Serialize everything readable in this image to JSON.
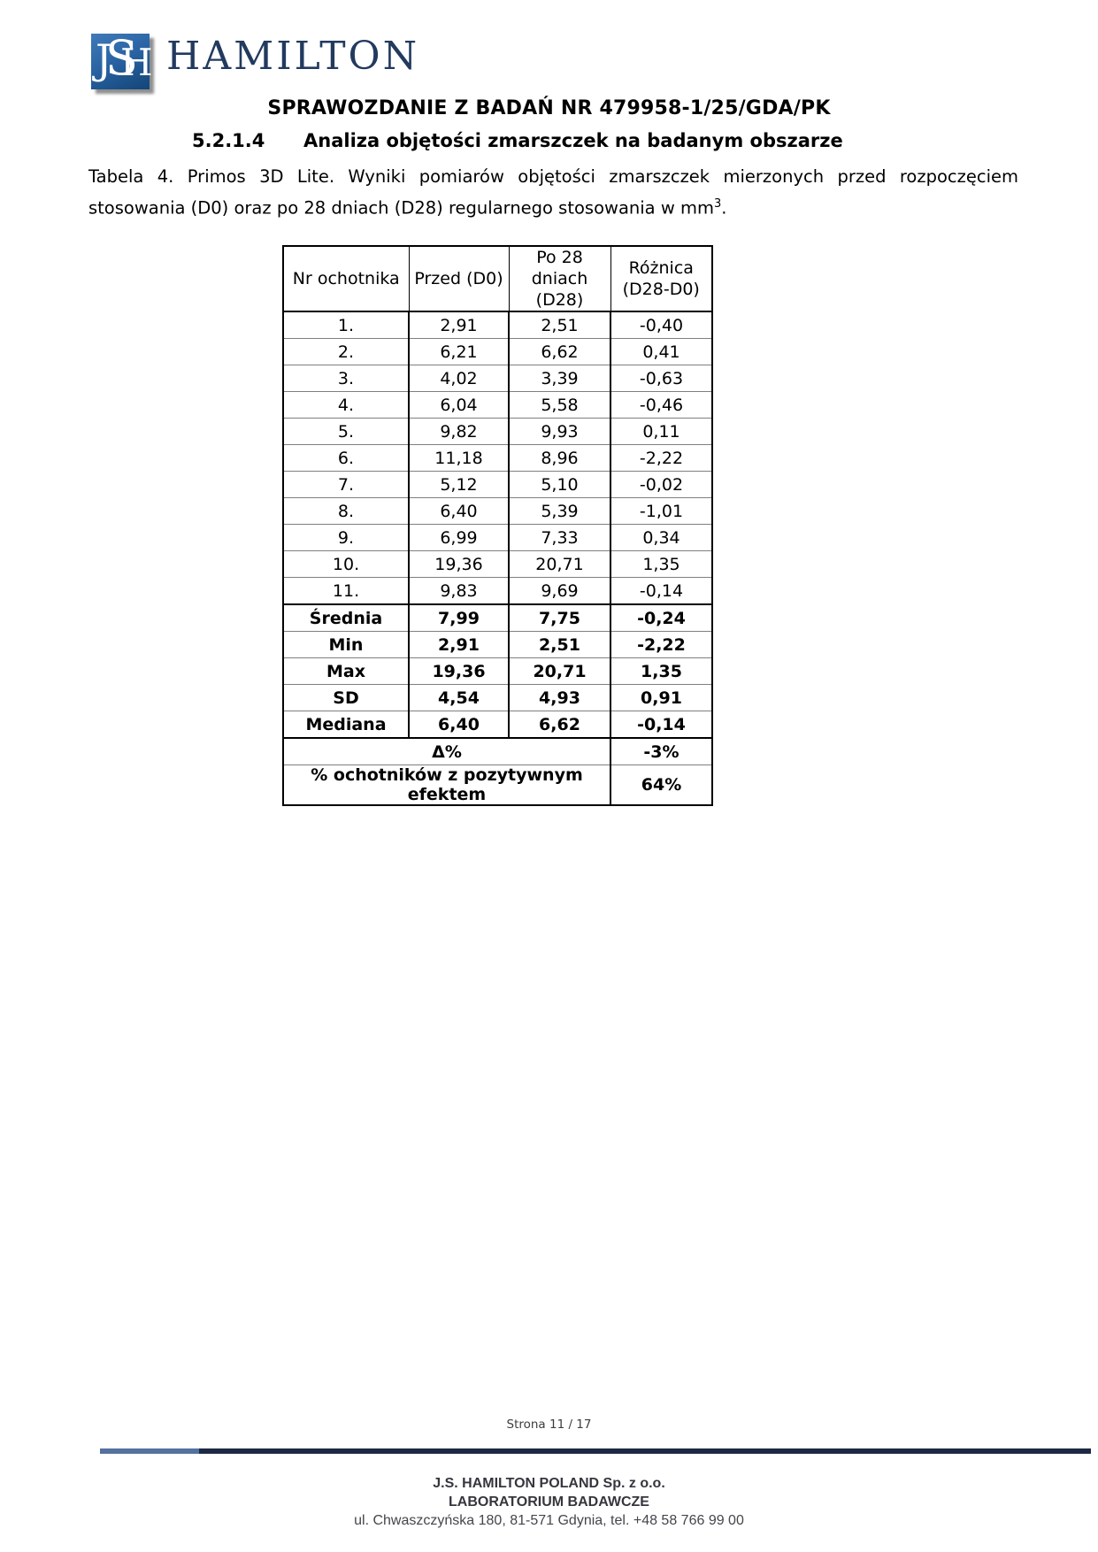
{
  "logo": {
    "letters": [
      "J",
      "S",
      "H"
    ],
    "name": "HAMILTON"
  },
  "report": {
    "title": "SPRAWOZDANIE Z BADAŃ NR 479958-1/25/GDA/PK",
    "section_number": "5.2.1.4",
    "section_title": "Analiza objętości zmarszczek na badanym obszarze",
    "caption_line1": "Tabela 4. Primos 3D Lite. Wyniki pomiarów objętości zmarszczek mierzonych przed rozpoczęciem",
    "caption_line2": "stosowania (D0) oraz po 28 dniach (D28) regularnego stosowania w mm",
    "caption_sup": "3",
    "caption_end": "."
  },
  "table": {
    "headers": [
      "Nr ochotnika",
      "Przed (D0)",
      "Po 28 dniach\n(D28)",
      "Różnica\n(D28-D0)"
    ],
    "rows": [
      [
        "1.",
        "2,91",
        "2,51",
        "-0,40"
      ],
      [
        "2.",
        "6,21",
        "6,62",
        "0,41"
      ],
      [
        "3.",
        "4,02",
        "3,39",
        "-0,63"
      ],
      [
        "4.",
        "6,04",
        "5,58",
        "-0,46"
      ],
      [
        "5.",
        "9,82",
        "9,93",
        "0,11"
      ],
      [
        "6.",
        "11,18",
        "8,96",
        "-2,22"
      ],
      [
        "7.",
        "5,12",
        "5,10",
        "-0,02"
      ],
      [
        "8.",
        "6,40",
        "5,39",
        "-1,01"
      ],
      [
        "9.",
        "6,99",
        "7,33",
        "0,34"
      ],
      [
        "10.",
        "19,36",
        "20,71",
        "1,35"
      ],
      [
        "11.",
        "9,83",
        "9,69",
        "-0,14"
      ]
    ],
    "summary_rows": [
      [
        "Średnia",
        "7,99",
        "7,75",
        "-0,24"
      ],
      [
        "Min",
        "2,91",
        "2,51",
        "-2,22"
      ],
      [
        "Max",
        "19,36",
        "20,71",
        "1,35"
      ],
      [
        "SD",
        "4,54",
        "4,93",
        "0,91"
      ],
      [
        "Mediana",
        "6,40",
        "6,62",
        "-0,14"
      ]
    ],
    "delta_row": {
      "label": "Δ%",
      "value": "-3%"
    },
    "percent_row": {
      "label": "% ochotników z pozytywnym efektem",
      "value": "64%"
    }
  },
  "footer": {
    "page": "Strona 11 / 17",
    "company": "J.S. HAMILTON POLAND Sp. z o.o.",
    "lab": "LABORATORIUM BADAWCZE",
    "address": "ul. Chwaszczyńska 180, 81-571 Gdynia, tel. +48 58 766 99 00"
  },
  "colors": {
    "logo_navy": "#223a5e",
    "bar_dark": "#1d2944",
    "bar_light": "#54719f"
  }
}
